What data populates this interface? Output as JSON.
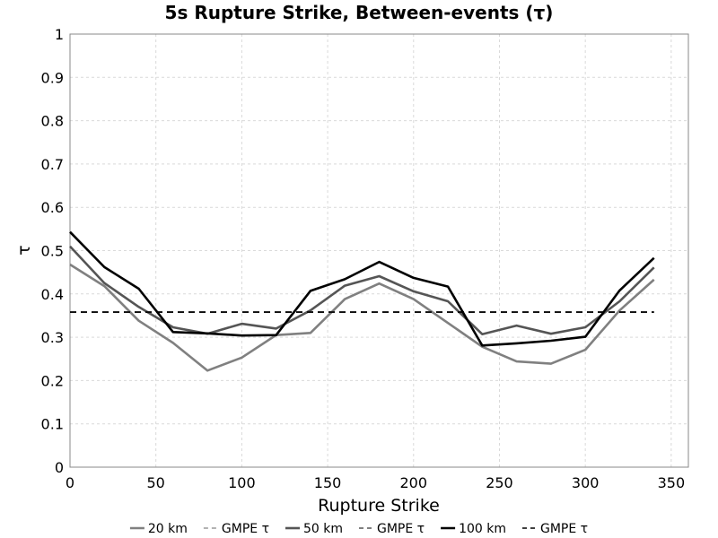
{
  "chart_data": {
    "type": "line",
    "title": "5s Rupture Strike, Between-events (τ)",
    "xlabel": "Rupture Strike",
    "ylabel": "τ",
    "xlim": [
      0,
      360
    ],
    "ylim": [
      0,
      1
    ],
    "xticks": [
      0,
      50,
      100,
      150,
      200,
      250,
      300,
      350
    ],
    "xtick_labels": [
      "0",
      "50",
      "100",
      "150",
      "200",
      "250",
      "300",
      "350"
    ],
    "yticks": [
      0,
      0.1,
      0.2,
      0.3,
      0.4,
      0.5,
      0.6,
      0.7,
      0.8,
      0.9,
      1
    ],
    "ytick_labels": [
      "0",
      "0.1",
      "0.2",
      "0.3",
      "0.4",
      "0.5",
      "0.6",
      "0.7",
      "0.8",
      "0.9",
      "1"
    ],
    "grid": true,
    "legend_position": "bottom",
    "x": [
      0,
      20,
      40,
      60,
      80,
      100,
      120,
      140,
      160,
      180,
      200,
      220,
      240,
      260,
      280,
      300,
      320,
      340
    ],
    "series": [
      {
        "name": "20 km",
        "color": "#808080",
        "style": "solid",
        "values": [
          0.468,
          0.418,
          0.338,
          0.287,
          0.223,
          0.253,
          0.305,
          0.31,
          0.388,
          0.424,
          0.388,
          0.333,
          0.278,
          0.244,
          0.239,
          0.271,
          0.362,
          0.433
        ]
      },
      {
        "name": "GMPE τ",
        "color": "#999999",
        "style": "dashed",
        "values": [
          0.358,
          0.358,
          0.358,
          0.358,
          0.358,
          0.358,
          0.358,
          0.358,
          0.358,
          0.358,
          0.358,
          0.358,
          0.358,
          0.358,
          0.358,
          0.358,
          0.358,
          0.358
        ]
      },
      {
        "name": "50 km",
        "color": "#555555",
        "style": "solid",
        "values": [
          0.51,
          0.425,
          0.37,
          0.323,
          0.308,
          0.331,
          0.32,
          0.362,
          0.419,
          0.441,
          0.406,
          0.383,
          0.307,
          0.327,
          0.308,
          0.323,
          0.383,
          0.461
        ]
      },
      {
        "name": "GMPE τ",
        "color": "#555555",
        "style": "dashed",
        "values": [
          0.358,
          0.358,
          0.358,
          0.358,
          0.358,
          0.358,
          0.358,
          0.358,
          0.358,
          0.358,
          0.358,
          0.358,
          0.358,
          0.358,
          0.358,
          0.358,
          0.358,
          0.358
        ]
      },
      {
        "name": "100 km",
        "color": "#000000",
        "style": "solid",
        "values": [
          0.543,
          0.462,
          0.412,
          0.312,
          0.309,
          0.304,
          0.305,
          0.407,
          0.434,
          0.474,
          0.437,
          0.417,
          0.281,
          0.286,
          0.292,
          0.301,
          0.408,
          0.483
        ]
      },
      {
        "name": "GMPE τ",
        "color": "#000000",
        "style": "dashed",
        "values": [
          0.358,
          0.358,
          0.358,
          0.358,
          0.358,
          0.358,
          0.358,
          0.358,
          0.358,
          0.358,
          0.358,
          0.358,
          0.358,
          0.358,
          0.358,
          0.358,
          0.358,
          0.358
        ]
      }
    ]
  }
}
